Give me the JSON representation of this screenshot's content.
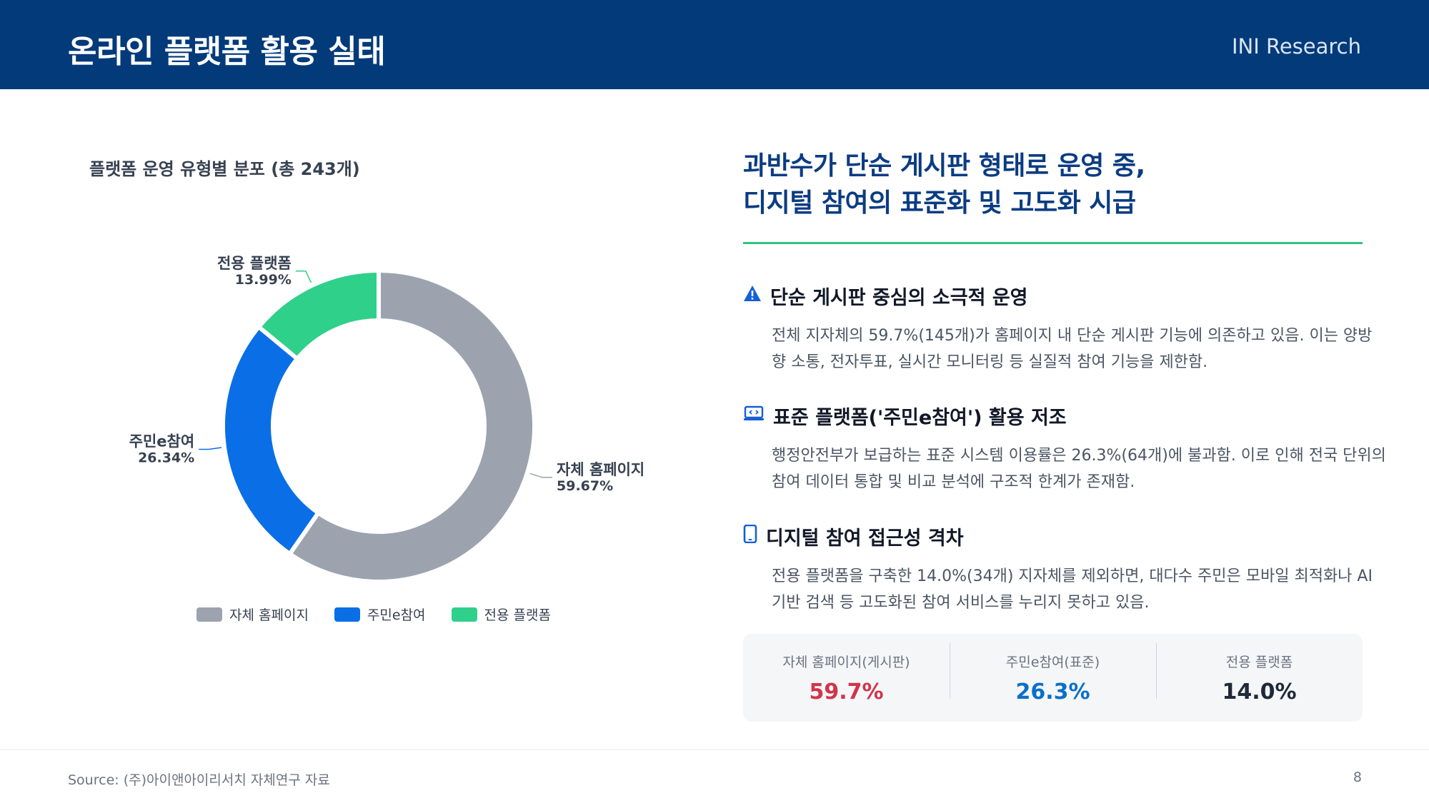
{
  "header": {
    "title": "온라인 플랫폼 활용 실태",
    "brand": "INI Research"
  },
  "chart_data": {
    "type": "pie",
    "title": "플랫폼 운영 유형별 분포 (총 243개)",
    "categories": [
      "자체 홈페이지",
      "주민e참여",
      "전용 플랫폼"
    ],
    "values": [
      59.67,
      26.34,
      13.99
    ],
    "value_labels": [
      "59.67%",
      "26.34%",
      "13.99%"
    ],
    "colors": [
      "#9ca3af",
      "#0a6fe6",
      "#2fd08a"
    ],
    "donut": true,
    "legend_position": "bottom"
  },
  "right": {
    "headline_line1": "과반수가 단순 게시판 형태로 운영 중,",
    "headline_line2": "디지털 참여의 표준화 및 고도화 시급",
    "items": [
      {
        "icon": "warning-icon",
        "title": "단순 게시판 중심의 소극적 운영",
        "body": "전체 지자체의 59.7%(145개)가 홈페이지 내 단순 게시판 기능에 의존하고 있음. 이는 양방향 소통, 전자투표, 실시간 모니터링 등 실질적 참여 기능을 제한함."
      },
      {
        "icon": "laptop-code-icon",
        "title": "표준 플랫폼('주민e참여') 활용 저조",
        "body": "행정안전부가 보급하는 표준 시스템 이용률은 26.3%(64개)에 불과함. 이로 인해 전국 단위의 참여 데이터 통합 및 비교 분석에 구조적 한계가 존재함."
      },
      {
        "icon": "mobile-icon",
        "title": "디지털 참여 접근성 격차",
        "body": "전용 플랫폼을 구축한 14.0%(34개) 지자체를 제외하면, 대다수 주민은 모바일 최적화나 AI 기반 검색 등 고도화된 참여 서비스를 누리지 못하고 있음."
      }
    ],
    "stats": [
      {
        "label": "자체 홈페이지(게시판)",
        "value": "59.7%",
        "color": "#d1344a"
      },
      {
        "label": "주민e참여(표준)",
        "value": "26.3%",
        "color": "#0a6fc9"
      },
      {
        "label": "전용 플랫폼",
        "value": "14.0%",
        "color": "#1f2937"
      }
    ]
  },
  "footer": {
    "source": "Source: (주)아이앤아이리서치 자체연구 자료",
    "page": "8"
  }
}
